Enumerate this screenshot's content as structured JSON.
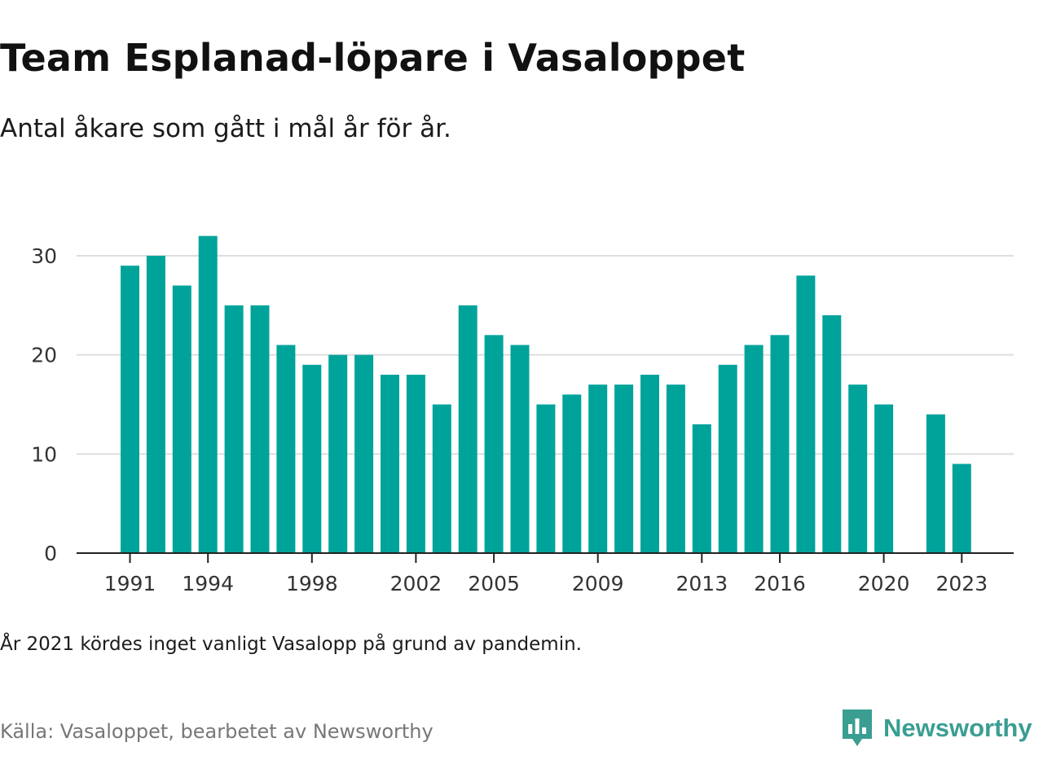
{
  "header": {
    "title": "Team Esplanad-löpare i Vasaloppet",
    "subtitle": "Antal åkare som gått i mål år för år."
  },
  "footer": {
    "note": "År 2021 kördes inget vanligt Vasalopp på grund av pandemin.",
    "source": "Källa: Vasaloppet, bearbetet av Newsworthy",
    "brand": "Newsworthy",
    "brand_icon": "newsworthy-logo-icon"
  },
  "colors": {
    "bar": "#00a39a",
    "brand": "#3a9e92",
    "grid": "#dddddd",
    "axis": "#222222"
  },
  "chart_data": {
    "type": "bar",
    "title": "Team Esplanad-löpare i Vasaloppet",
    "subtitle": "Antal åkare som gått i mål år för år.",
    "categories": [
      1991,
      1992,
      1993,
      1994,
      1995,
      1996,
      1997,
      1998,
      1999,
      2000,
      2001,
      2002,
      2003,
      2004,
      2005,
      2006,
      2007,
      2008,
      2009,
      2010,
      2011,
      2012,
      2013,
      2014,
      2015,
      2016,
      2017,
      2018,
      2019,
      2020,
      2021,
      2022,
      2023
    ],
    "values": [
      29,
      30,
      27,
      32,
      25,
      25,
      21,
      19,
      20,
      20,
      18,
      18,
      15,
      25,
      22,
      21,
      15,
      16,
      17,
      17,
      18,
      17,
      13,
      19,
      21,
      22,
      28,
      24,
      17,
      15,
      0,
      14,
      9
    ],
    "x_tick_labels": [
      "1991",
      "1994",
      "1998",
      "2002",
      "2005",
      "2009",
      "2013",
      "2016",
      "2020",
      "2023"
    ],
    "y_ticks": [
      0,
      10,
      20,
      30
    ],
    "ylim": [
      0,
      32
    ],
    "xlabel": "",
    "ylabel": "",
    "grid": true
  }
}
